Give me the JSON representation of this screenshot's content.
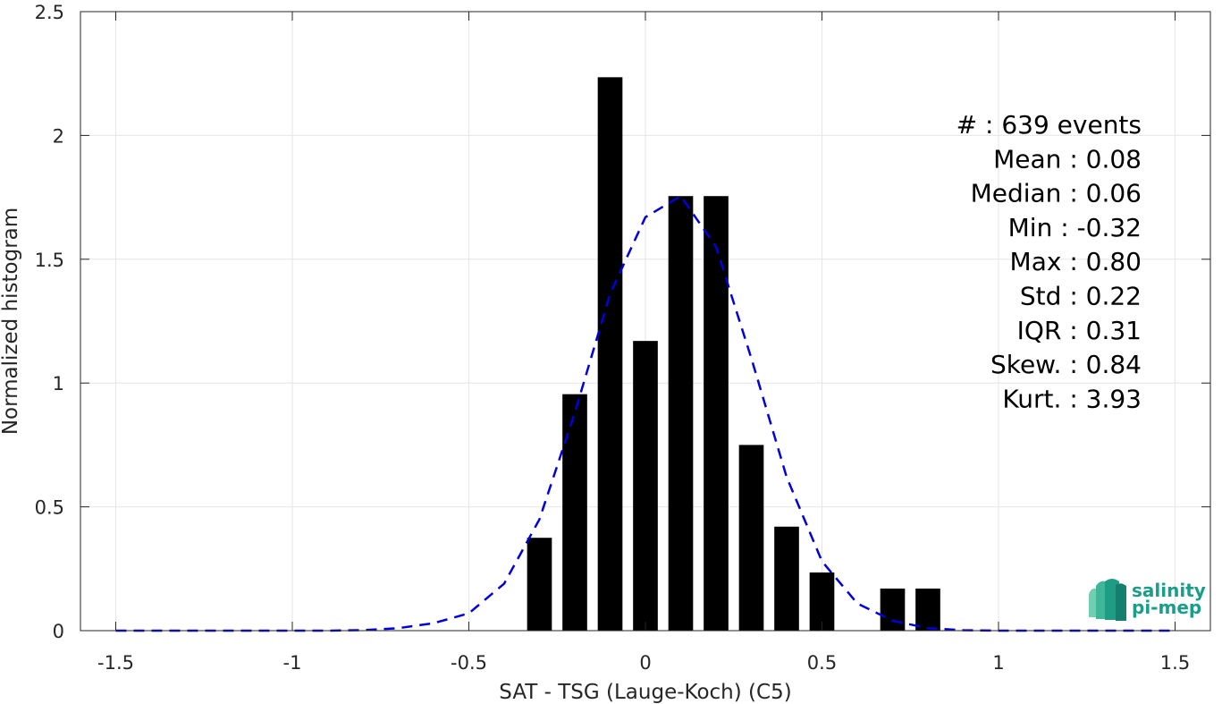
{
  "chart_data": {
    "type": "bar",
    "xlabel": "SAT - TSG (Lauge-Koch) (C5)",
    "ylabel": "Normalized histogram",
    "xlim": [
      -1.6,
      1.6
    ],
    "ylim": [
      0,
      2.5
    ],
    "xticks": [
      -1.5,
      -1,
      -0.5,
      0,
      0.5,
      1,
      1.5
    ],
    "xtick_labels": [
      "-1.5",
      "-1",
      "-0.5",
      "0",
      "0.5",
      "1",
      "1.5"
    ],
    "yticks": [
      0,
      0.5,
      1,
      1.5,
      2,
      2.5
    ],
    "ytick_labels": [
      "0",
      "0.5",
      "1",
      "1.5",
      "2",
      "2.5"
    ],
    "grid": true,
    "bar_color": "#000000",
    "bar_width": 0.07,
    "bars": [
      {
        "x": -0.3,
        "value": 0.375
      },
      {
        "x": -0.2,
        "value": 0.955
      },
      {
        "x": -0.1,
        "value": 2.235
      },
      {
        "x": 0.0,
        "value": 1.17
      },
      {
        "x": 0.1,
        "value": 1.755
      },
      {
        "x": 0.2,
        "value": 1.755
      },
      {
        "x": 0.3,
        "value": 0.75
      },
      {
        "x": 0.4,
        "value": 0.42
      },
      {
        "x": 0.5,
        "value": 0.235
      },
      {
        "x": 0.7,
        "value": 0.17
      },
      {
        "x": 0.8,
        "value": 0.17
      }
    ],
    "fit_curve": {
      "style": "dashed",
      "color": "#0000dd",
      "x": [
        -1.5,
        -1.4,
        -1.3,
        -1.2,
        -1.1,
        -1.0,
        -0.9,
        -0.8,
        -0.7,
        -0.6,
        -0.5,
        -0.4,
        -0.3,
        -0.2,
        -0.1,
        0.0,
        0.1,
        0.2,
        0.3,
        0.4,
        0.5,
        0.6,
        0.7,
        0.8,
        0.9,
        1.0,
        1.1,
        1.2,
        1.3,
        1.4,
        1.5
      ],
      "y": [
        0,
        0,
        0,
        0,
        0,
        0,
        0,
        0.002,
        0.01,
        0.03,
        0.07,
        0.19,
        0.45,
        0.88,
        1.36,
        1.67,
        1.755,
        1.55,
        1.1,
        0.62,
        0.28,
        0.11,
        0.04,
        0.01,
        0.002,
        0,
        0,
        0,
        0,
        0,
        0
      ]
    },
    "stats": [
      "#  : 639 events",
      "Mean : 0.08",
      "Median : 0.06",
      "Min : -0.32",
      "Max : 0.80",
      "Std : 0.22",
      "IQR : 0.31",
      "Skew. : 0.84",
      "Kurt. : 3.93"
    ]
  },
  "logo": {
    "line1": "salinity",
    "line2": "pi-mep",
    "color": "#1a9e8a"
  }
}
